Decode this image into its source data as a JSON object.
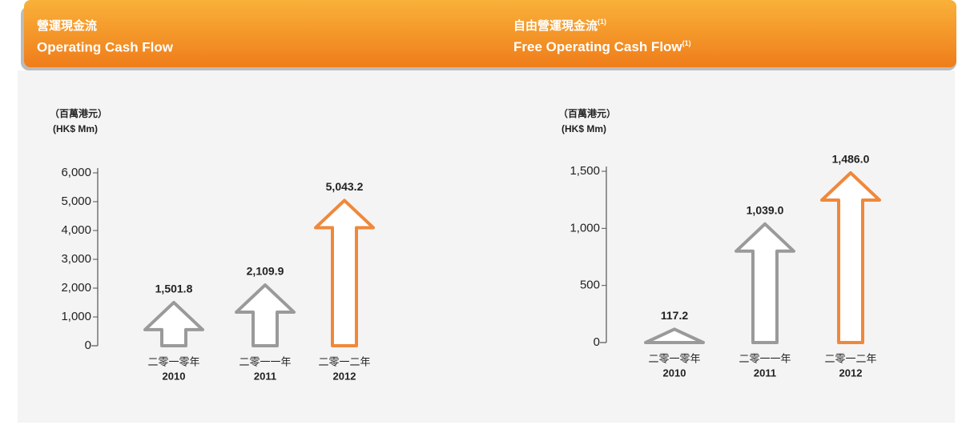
{
  "chart_data": [
    {
      "type": "bar",
      "title_zh": "營運現金流",
      "title": "Operating Cash Flow",
      "unit_zh": "（百萬港元）",
      "unit": "(HK$ Mm)",
      "categories_zh": [
        "二零一零年",
        "二零一一年",
        "二零一二年"
      ],
      "categories": [
        "2010",
        "2011",
        "2012"
      ],
      "values": [
        1501.8,
        2109.9,
        5043.2
      ],
      "value_labels": [
        "1,501.8",
        "2,109.9",
        "5,043.2"
      ],
      "colors": [
        "#9a9a9a",
        "#9a9a9a",
        "#f0883a"
      ],
      "ylim": [
        0,
        6000
      ],
      "yticks": [
        0,
        {
          "value": 1000,
          "label": "1,000"
        },
        {
          "value": 2000,
          "label": "2,000"
        },
        {
          "value": 3000,
          "label": "3,000"
        },
        {
          "value": 4000,
          "label": "4,000"
        },
        {
          "value": 5000,
          "label": "5,000"
        },
        {
          "value": 6000,
          "label": "6,000"
        }
      ]
    },
    {
      "type": "bar",
      "title_zh": "自由營運現金流",
      "title": "Free Operating Cash Flow",
      "footnote_ref": "(1)",
      "unit_zh": "（百萬港元）",
      "unit": "(HK$ Mm)",
      "categories_zh": [
        "二零一零年",
        "二零一一年",
        "二零一二年"
      ],
      "categories": [
        "2010",
        "2011",
        "2012"
      ],
      "values": [
        117.2,
        1039.0,
        1486.0
      ],
      "value_labels": [
        "117.2",
        "1,039.0",
        "1,486.0"
      ],
      "colors": [
        "#9a9a9a",
        "#9a9a9a",
        "#f0883a"
      ],
      "ylim": [
        0,
        1500
      ],
      "yticks": [
        0,
        500,
        {
          "value": 1000,
          "label": "1,000"
        },
        {
          "value": 1500,
          "label": "1,500"
        }
      ]
    }
  ]
}
